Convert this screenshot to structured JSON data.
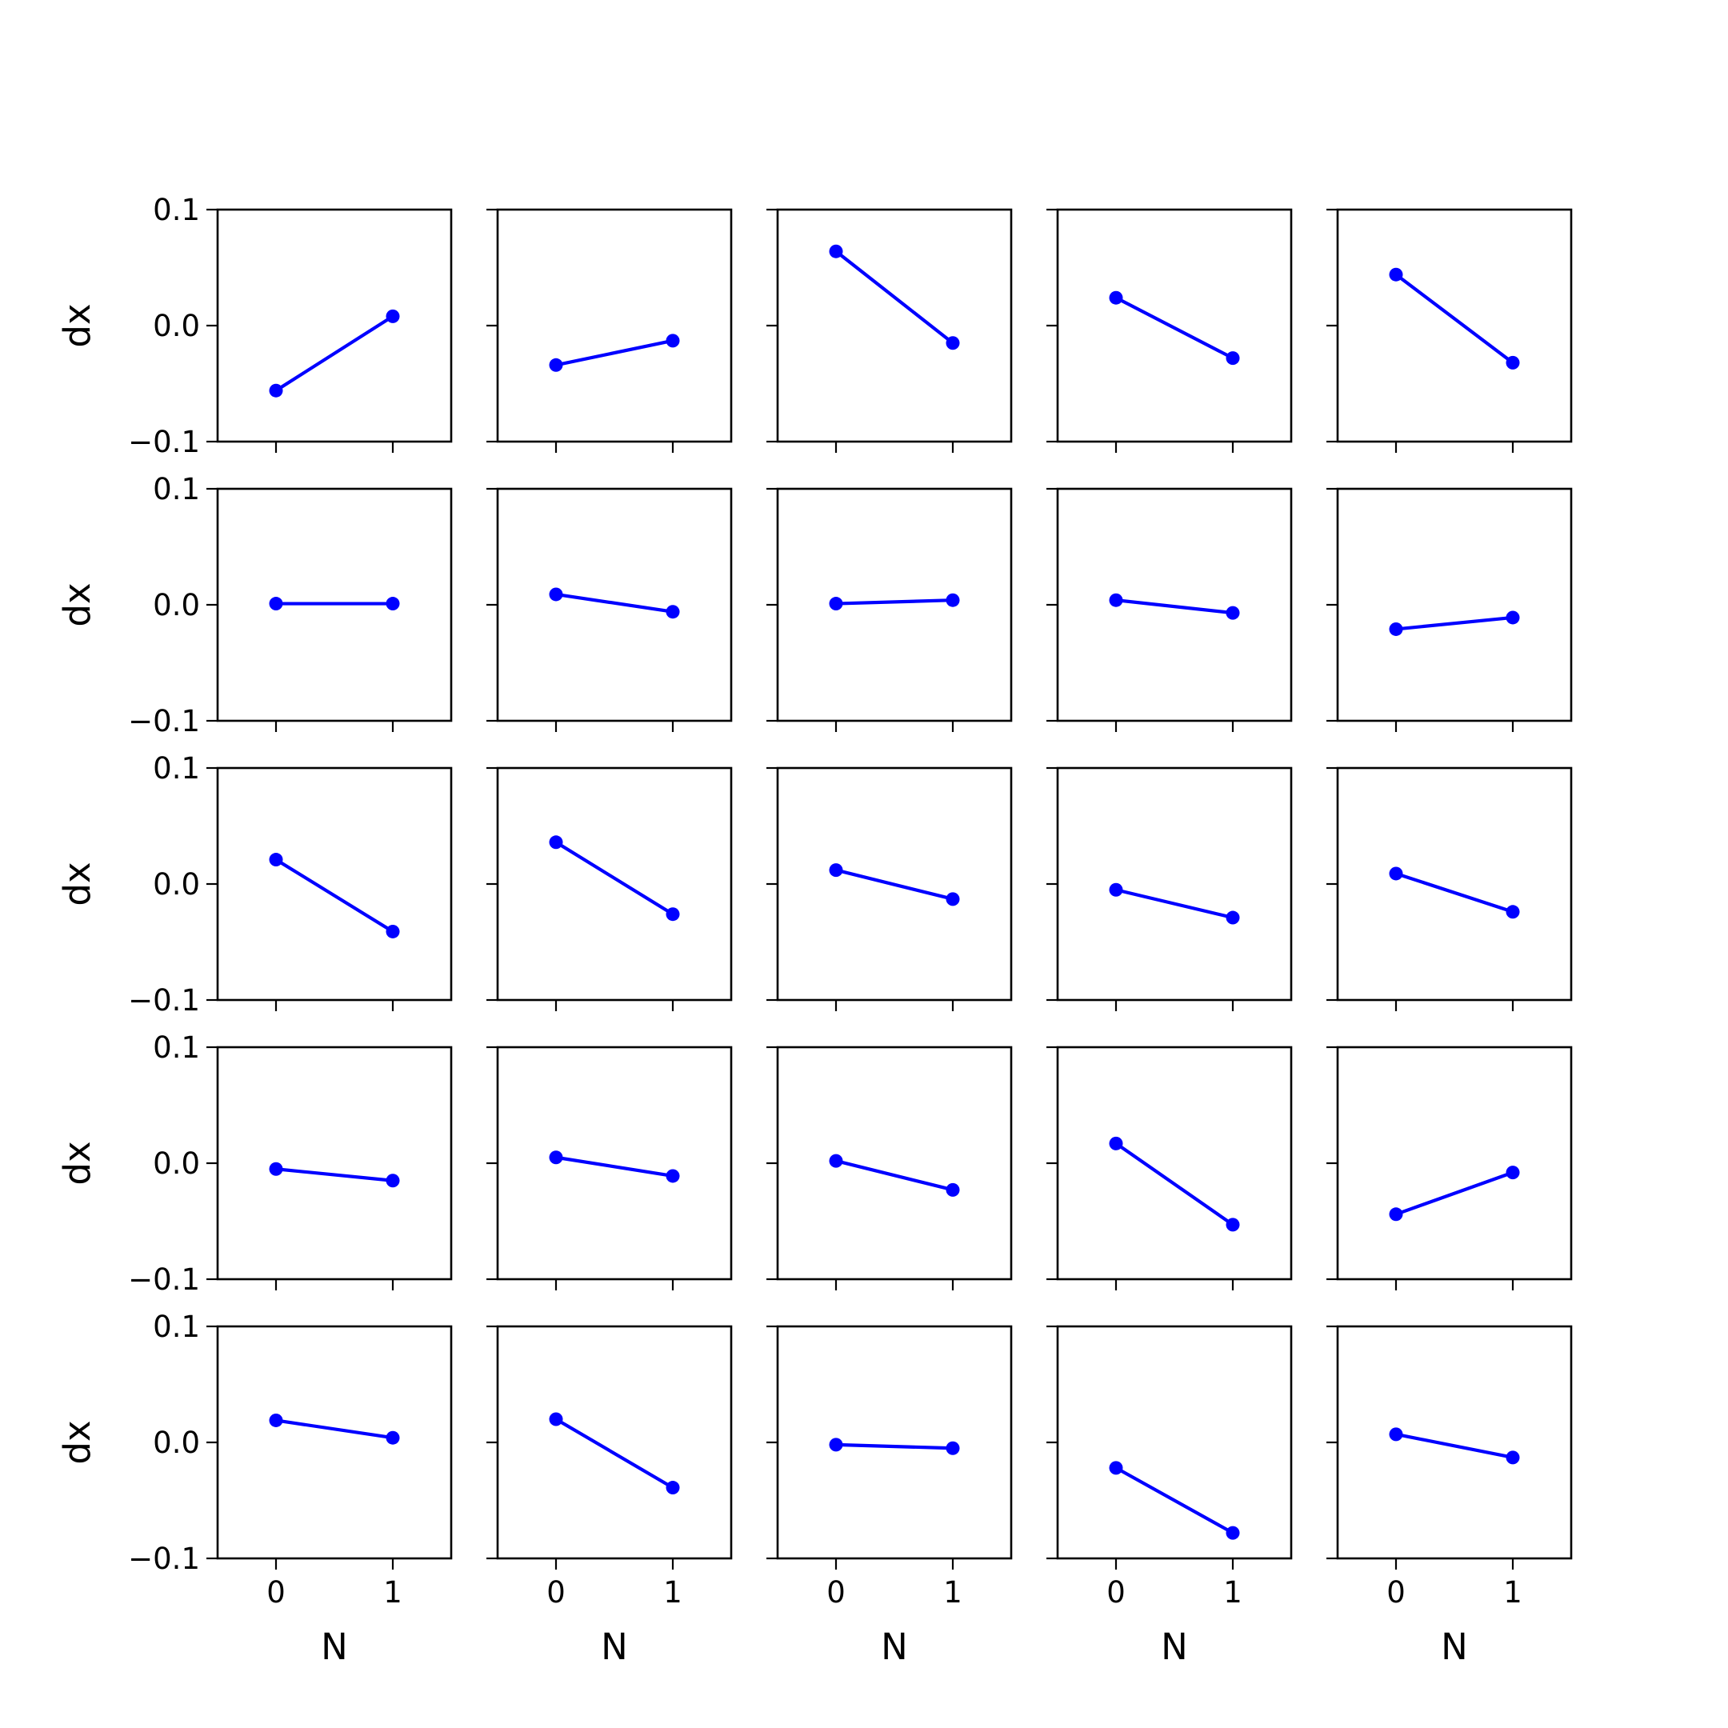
{
  "chart_data": {
    "type": "line",
    "layout": {
      "rows": 5,
      "cols": 5
    },
    "line_color": "#0000ff",
    "marker": "circle",
    "xlabel": "N",
    "ylabel": "dx",
    "xlim": [
      -0.5,
      1.5
    ],
    "ylim": [
      -0.1,
      0.1
    ],
    "xticks": [
      0,
      1
    ],
    "xtick_labels": [
      "0",
      "1"
    ],
    "yticks": [
      0.1,
      0.0,
      -0.1
    ],
    "ytick_labels": [
      "0.1",
      "0.0",
      "−0.1"
    ],
    "x": [
      0,
      1
    ],
    "panels": [
      {
        "values": [
          -0.056,
          0.008
        ]
      },
      {
        "values": [
          -0.034,
          -0.013
        ]
      },
      {
        "values": [
          0.064,
          -0.015
        ]
      },
      {
        "values": [
          0.024,
          -0.028
        ]
      },
      {
        "values": [
          0.044,
          -0.032
        ]
      },
      {
        "values": [
          0.001,
          0.001
        ]
      },
      {
        "values": [
          0.009,
          -0.006
        ]
      },
      {
        "values": [
          0.001,
          0.004
        ]
      },
      {
        "values": [
          0.004,
          -0.007
        ]
      },
      {
        "values": [
          -0.021,
          -0.011
        ]
      },
      {
        "values": [
          0.021,
          -0.041
        ]
      },
      {
        "values": [
          0.036,
          -0.026
        ]
      },
      {
        "values": [
          0.012,
          -0.013
        ]
      },
      {
        "values": [
          -0.005,
          -0.029
        ]
      },
      {
        "values": [
          0.009,
          -0.024
        ]
      },
      {
        "values": [
          -0.005,
          -0.015
        ]
      },
      {
        "values": [
          0.005,
          -0.011
        ]
      },
      {
        "values": [
          0.002,
          -0.023
        ]
      },
      {
        "values": [
          0.017,
          -0.053
        ]
      },
      {
        "values": [
          -0.044,
          -0.008
        ]
      },
      {
        "values": [
          0.019,
          0.004
        ]
      },
      {
        "values": [
          0.02,
          -0.039
        ]
      },
      {
        "values": [
          -0.002,
          -0.005
        ]
      },
      {
        "values": [
          -0.022,
          -0.078
        ]
      },
      {
        "values": [
          0.007,
          -0.013
        ]
      }
    ]
  }
}
